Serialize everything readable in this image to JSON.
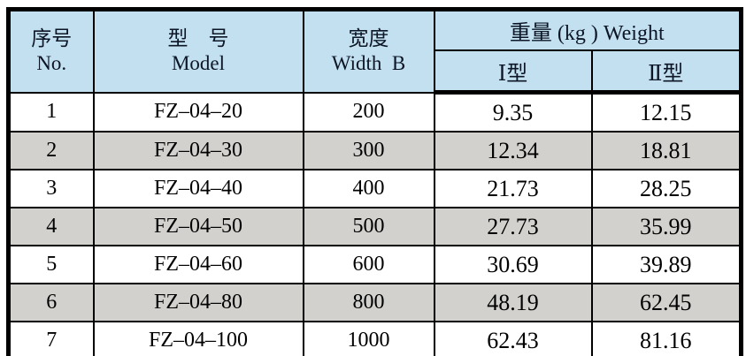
{
  "colors": {
    "header_bg": "#c3e0f0",
    "row_alt_bg": "#d2d1cd",
    "border": "#000000",
    "text": "#000000"
  },
  "table": {
    "header": {
      "no_zh": "序号",
      "no_en": "No.",
      "model_zh": "型　号",
      "model_en": "Model",
      "width_zh": "宽度",
      "width_en": "Width  B",
      "weight_title": "重量 (kg ) Weight",
      "type1": "Ⅰ型",
      "type2": "Ⅱ型"
    },
    "rows": [
      {
        "no": "1",
        "model": "FZ–04–20",
        "width": "200",
        "weight1": "9.35",
        "weight2": "12.15"
      },
      {
        "no": "2",
        "model": "FZ–04–30",
        "width": "300",
        "weight1": "12.34",
        "weight2": "18.81"
      },
      {
        "no": "3",
        "model": "FZ–04–40",
        "width": "400",
        "weight1": "21.73",
        "weight2": "28.25"
      },
      {
        "no": "4",
        "model": "FZ–04–50",
        "width": "500",
        "weight1": "27.73",
        "weight2": "35.99"
      },
      {
        "no": "5",
        "model": "FZ–04–60",
        "width": "600",
        "weight1": "30.69",
        "weight2": "39.89"
      },
      {
        "no": "6",
        "model": "FZ–04–80",
        "width": "800",
        "weight1": "48.19",
        "weight2": "62.45"
      },
      {
        "no": "7",
        "model": "FZ–04–100",
        "width": "1000",
        "weight1": "62.43",
        "weight2": "81.16"
      }
    ]
  }
}
